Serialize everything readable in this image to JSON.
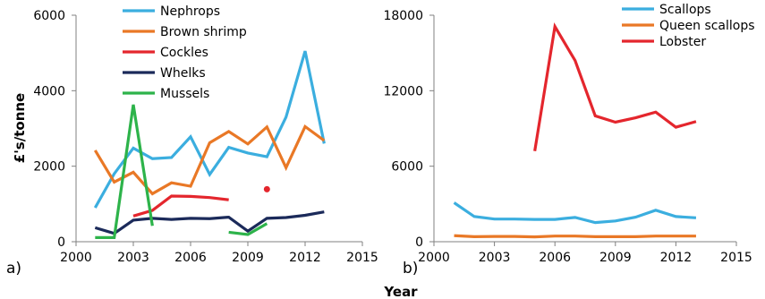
{
  "figure": {
    "ylabel": "£'s/tonne",
    "xlabel": "Year"
  },
  "chart_data": [
    {
      "type": "line",
      "panel_label": "a)",
      "ylabel": "£'s/tonne",
      "xlabel": "",
      "xlim": [
        2000,
        2015
      ],
      "ylim": [
        0,
        6000
      ],
      "xticks": [
        2000,
        2003,
        2006,
        2009,
        2012,
        2015
      ],
      "yticks": [
        0,
        2000,
        4000,
        6000
      ],
      "legend_position": "top",
      "series": [
        {
          "name": "Nephrops",
          "color": "#3BAEDF",
          "points": [
            [
              2001,
              900
            ],
            [
              2002,
              1800
            ],
            [
              2003,
              2480
            ],
            [
              2004,
              2200
            ],
            [
              2005,
              2230
            ],
            [
              2006,
              2780
            ],
            [
              2007,
              1780
            ],
            [
              2008,
              2500
            ],
            [
              2009,
              2350
            ],
            [
              2010,
              2250
            ],
            [
              2011,
              3300
            ],
            [
              2012,
              5050
            ],
            [
              2013,
              2600
            ]
          ]
        },
        {
          "name": "Brown shrimp",
          "color": "#E97826",
          "points": [
            [
              2001,
              2420
            ],
            [
              2002,
              1580
            ],
            [
              2003,
              1840
            ],
            [
              2004,
              1270
            ],
            [
              2005,
              1560
            ],
            [
              2006,
              1470
            ],
            [
              2007,
              2620
            ],
            [
              2008,
              2920
            ],
            [
              2009,
              2590
            ],
            [
              2010,
              3040
            ],
            [
              2011,
              1960
            ],
            [
              2012,
              3050
            ],
            [
              2013,
              2680
            ]
          ]
        },
        {
          "name": "Cockles",
          "color": "#E4262D",
          "points": [
            [
              2003,
              680
            ],
            [
              2004,
              830
            ],
            [
              2005,
              1210
            ],
            [
              2006,
              1200
            ],
            [
              2007,
              1170
            ],
            [
              2008,
              1110
            ],
            [
              2010,
              1390
            ]
          ]
        },
        {
          "name": "Whelks",
          "color": "#1B2A5A",
          "points": [
            [
              2001,
              370
            ],
            [
              2002,
              220
            ],
            [
              2003,
              570
            ],
            [
              2004,
              620
            ],
            [
              2005,
              590
            ],
            [
              2006,
              620
            ],
            [
              2007,
              610
            ],
            [
              2008,
              650
            ],
            [
              2009,
              280
            ],
            [
              2010,
              620
            ],
            [
              2011,
              640
            ],
            [
              2012,
              700
            ],
            [
              2013,
              790
            ]
          ]
        },
        {
          "name": "Mussels",
          "color": "#2DB34A",
          "points": [
            [
              2001,
              110
            ],
            [
              2002,
              110
            ],
            [
              2003,
              3630
            ],
            [
              2004,
              420
            ],
            [
              2008,
              250
            ],
            [
              2009,
              190
            ],
            [
              2010,
              480
            ]
          ]
        }
      ]
    },
    {
      "type": "line",
      "panel_label": "b)",
      "ylabel": "",
      "xlabel": "Year",
      "xlim": [
        2000,
        2015
      ],
      "ylim": [
        0,
        18000
      ],
      "xticks": [
        2000,
        2003,
        2006,
        2009,
        2012,
        2015
      ],
      "yticks": [
        0,
        6000,
        12000,
        18000
      ],
      "legend_position": "top-right",
      "series": [
        {
          "name": "Scallops",
          "color": "#3BAEDF",
          "points": [
            [
              2001,
              3100
            ],
            [
              2002,
              2000
            ],
            [
              2003,
              1800
            ],
            [
              2004,
              1800
            ],
            [
              2005,
              1770
            ],
            [
              2006,
              1770
            ],
            [
              2007,
              1930
            ],
            [
              2008,
              1520
            ],
            [
              2009,
              1650
            ],
            [
              2010,
              1950
            ],
            [
              2011,
              2500
            ],
            [
              2012,
              2000
            ],
            [
              2013,
              1900
            ]
          ]
        },
        {
          "name": "Queen scallops",
          "color": "#E97826",
          "points": [
            [
              2001,
              480
            ],
            [
              2002,
              400
            ],
            [
              2003,
              420
            ],
            [
              2004,
              420
            ],
            [
              2005,
              380
            ],
            [
              2006,
              450
            ],
            [
              2007,
              450
            ],
            [
              2008,
              400
            ],
            [
              2009,
              400
            ],
            [
              2010,
              400
            ],
            [
              2011,
              450
            ],
            [
              2012,
              450
            ],
            [
              2013,
              450
            ]
          ]
        },
        {
          "name": "Lobster",
          "color": "#E4262D",
          "points": [
            [
              2005,
              7200
            ],
            [
              2006,
              17100
            ],
            [
              2007,
              14400
            ],
            [
              2008,
              10000
            ],
            [
              2009,
              9500
            ],
            [
              2010,
              9850
            ],
            [
              2011,
              10300
            ],
            [
              2012,
              9100
            ],
            [
              2013,
              9550
            ]
          ]
        }
      ]
    }
  ]
}
